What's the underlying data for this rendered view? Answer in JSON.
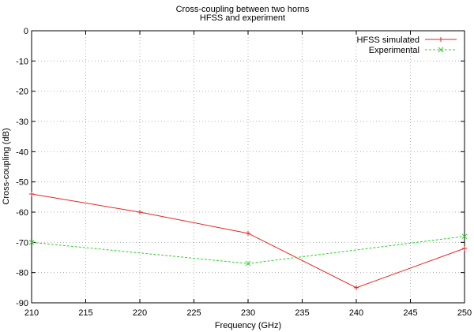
{
  "chart_data": {
    "type": "line",
    "title": "Cross-coupling between two horns",
    "subtitle": "HFSS and experiment",
    "xlabel": "Frequency (GHz)",
    "ylabel": "Cross-coupling (dB)",
    "xlim": [
      210,
      250
    ],
    "ylim": [
      -90,
      0
    ],
    "xticks": [
      210,
      215,
      220,
      225,
      230,
      235,
      240,
      245,
      250
    ],
    "yticks": [
      0,
      -10,
      -20,
      -30,
      -40,
      -50,
      -60,
      -70,
      -80,
      -90
    ],
    "grid": true,
    "legend_position": "top-right",
    "series": [
      {
        "name": "HFSS simulated",
        "color": "#e32626",
        "marker": "plus",
        "dash": "solid",
        "points": [
          [
            210,
            -54
          ],
          [
            220,
            -60
          ],
          [
            230,
            -67
          ],
          [
            240,
            -85
          ],
          [
            250,
            -72
          ]
        ]
      },
      {
        "name": "Experimental",
        "color": "#2ed12e",
        "marker": "cross",
        "dash": "dashed",
        "points": [
          [
            210,
            -70
          ],
          [
            230,
            -77
          ],
          [
            250,
            -68
          ]
        ]
      }
    ]
  }
}
